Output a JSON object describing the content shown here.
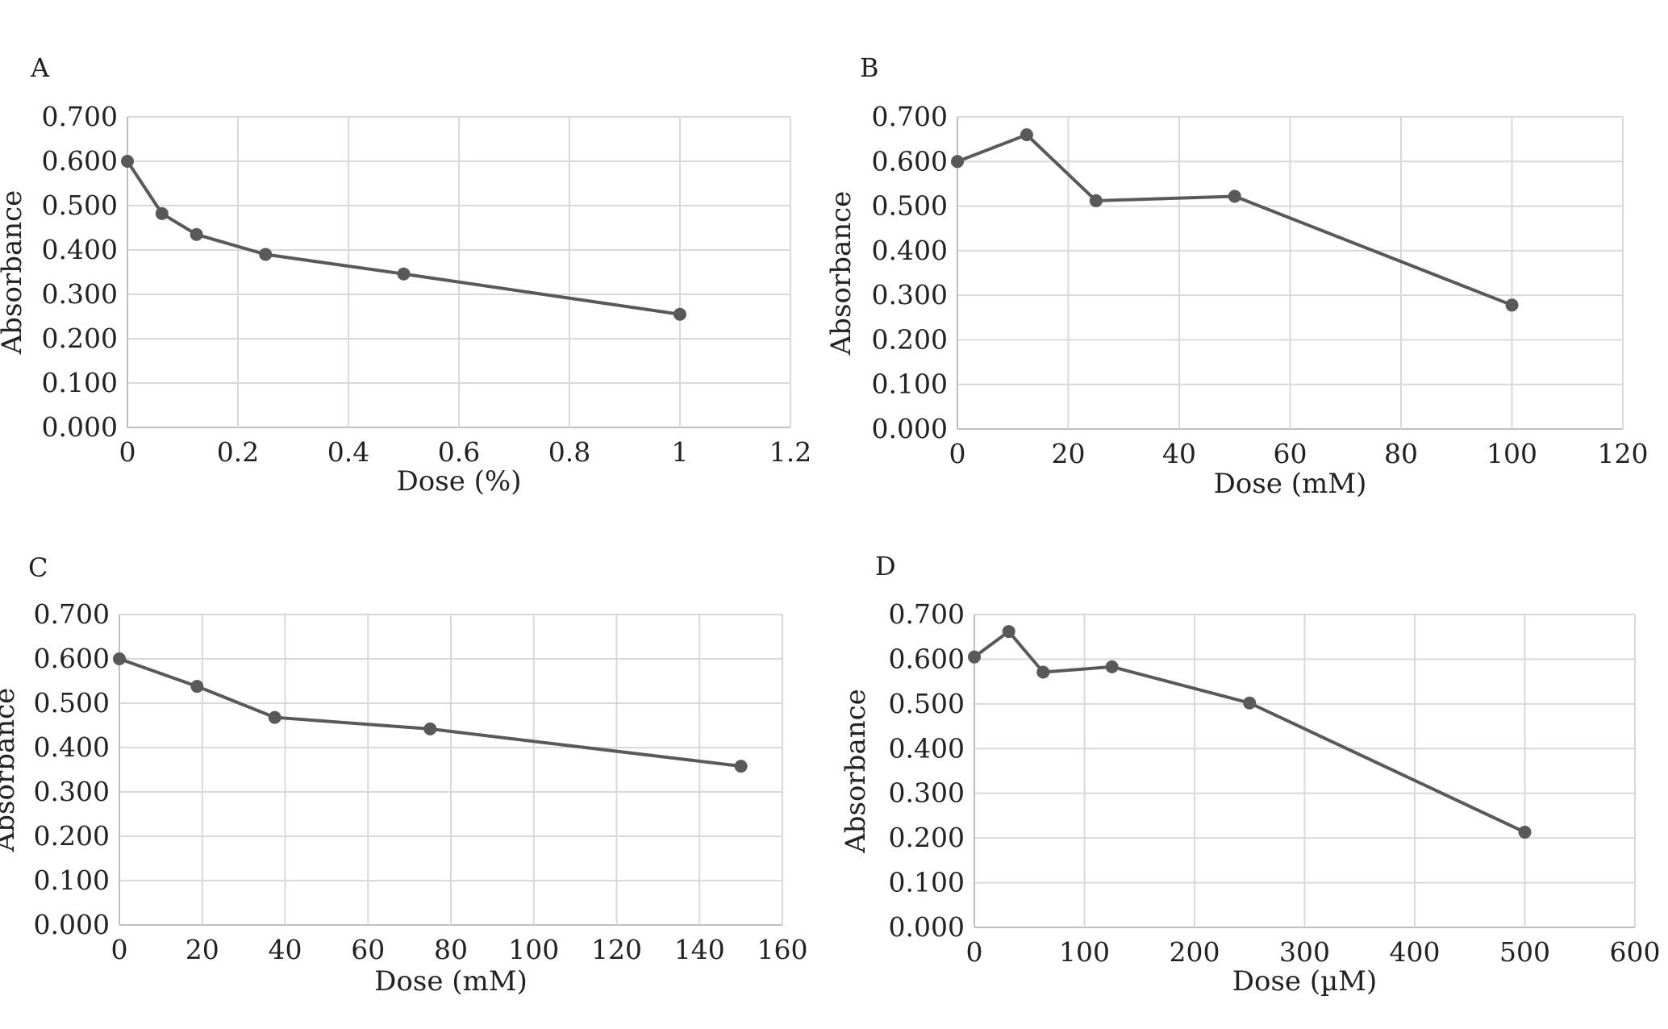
{
  "colors": {
    "line": "#595959",
    "marker": "#595959",
    "grid": "#d9d9d9",
    "axis": "#bfbfbf",
    "text": "#222222"
  },
  "chart_data": [
    {
      "type": "line",
      "panel_label": "A",
      "xlabel": "Dose (%)",
      "ylabel": "Absorbance",
      "xlim": [
        0,
        1.2
      ],
      "ylim": [
        0,
        0.7
      ],
      "x_ticks": [
        "0",
        "0.2",
        "0.4",
        "0.6",
        "0.8",
        "1",
        "1.2"
      ],
      "y_ticks": [
        "0.000",
        "0.100",
        "0.200",
        "0.300",
        "0.400",
        "0.500",
        "0.600",
        "0.700"
      ],
      "grid": true,
      "series": [
        {
          "x": [
            0,
            0.0625,
            0.125,
            0.25,
            0.5,
            1
          ],
          "y": [
            0.6,
            0.482,
            0.435,
            0.39,
            0.346,
            0.255
          ]
        }
      ]
    },
    {
      "type": "line",
      "panel_label": "B",
      "xlabel": "Dose (mM)",
      "ylabel": "Absorbance",
      "xlim": [
        0,
        120
      ],
      "ylim": [
        0,
        0.7
      ],
      "x_ticks": [
        "0",
        "20",
        "40",
        "60",
        "80",
        "100",
        "120"
      ],
      "y_ticks": [
        "0.000",
        "0.100",
        "0.200",
        "0.300",
        "0.400",
        "0.500",
        "0.600",
        "0.700"
      ],
      "grid": true,
      "series": [
        {
          "x": [
            0,
            12.5,
            25,
            50,
            100
          ],
          "y": [
            0.6,
            0.66,
            0.512,
            0.522,
            0.278
          ]
        }
      ]
    },
    {
      "type": "line",
      "panel_label": "C",
      "xlabel": "Dose (mM)",
      "ylabel": "Absorbance",
      "xlim": [
        0,
        160
      ],
      "ylim": [
        0,
        0.7
      ],
      "x_ticks": [
        "0",
        "20",
        "40",
        "60",
        "80",
        "100",
        "120",
        "140",
        "160"
      ],
      "y_ticks": [
        "0.000",
        "0.100",
        "0.200",
        "0.300",
        "0.400",
        "0.500",
        "0.600",
        "0.700"
      ],
      "grid": true,
      "series": [
        {
          "x": [
            0,
            18.75,
            37.5,
            75,
            150
          ],
          "y": [
            0.6,
            0.538,
            0.468,
            0.442,
            0.358
          ]
        }
      ]
    },
    {
      "type": "line",
      "panel_label": "D",
      "xlabel": "Dose (µM)",
      "ylabel": "Absorbance",
      "xlim": [
        0,
        600
      ],
      "ylim": [
        0,
        0.7
      ],
      "x_ticks": [
        "0",
        "100",
        "200",
        "300",
        "400",
        "500",
        "600"
      ],
      "y_ticks": [
        "0.000",
        "0.100",
        "0.200",
        "0.300",
        "0.400",
        "0.500",
        "0.600",
        "0.700"
      ],
      "grid": true,
      "series": [
        {
          "x": [
            0,
            31.25,
            62.5,
            125,
            250,
            500
          ],
          "y": [
            0.605,
            0.662,
            0.571,
            0.583,
            0.502,
            0.213
          ]
        }
      ]
    }
  ]
}
